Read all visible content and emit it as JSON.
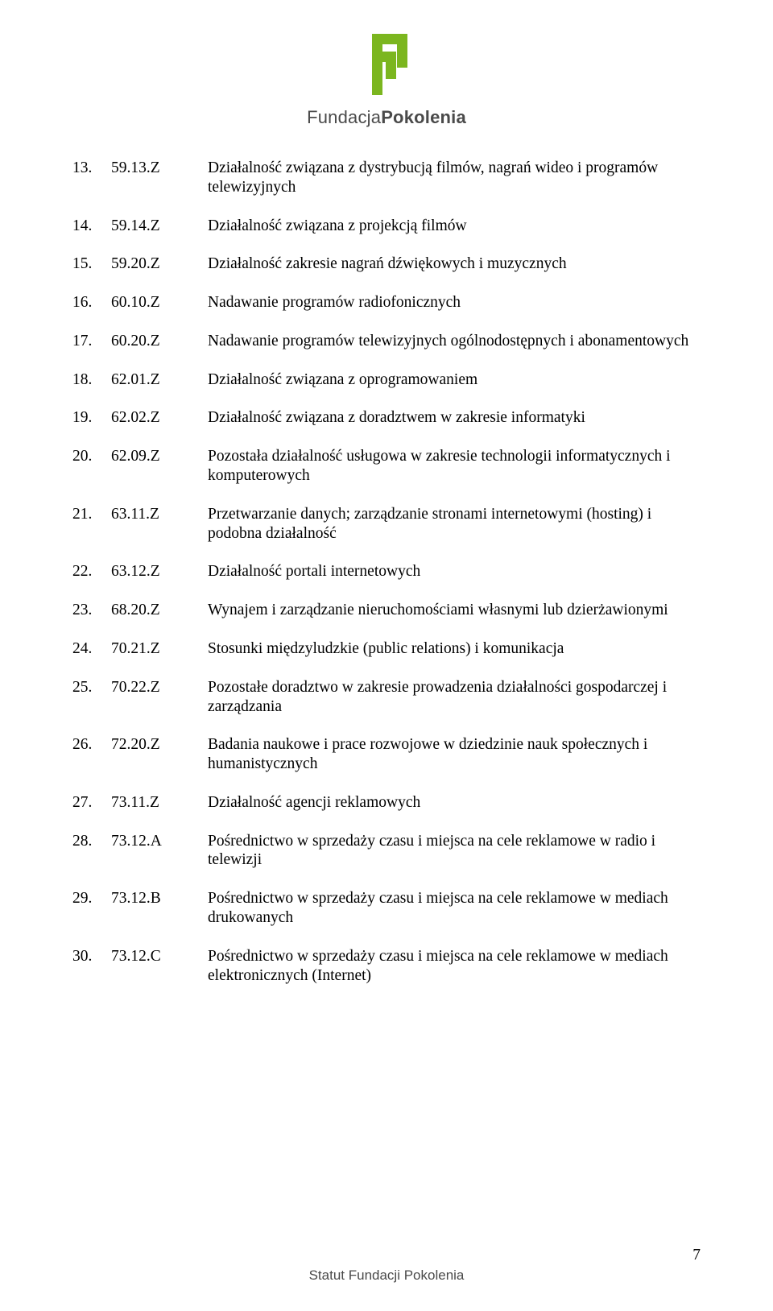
{
  "brand": {
    "part1": "Fundacja",
    "part2": "Pokolenia"
  },
  "logo": {
    "color": "#7bb61f",
    "width": 64,
    "height": 76
  },
  "rows": [
    {
      "n": "13.",
      "code": "59.13.Z",
      "desc": "Działalność związana z dystrybucją filmów, nagrań wideo i programów telewizyjnych"
    },
    {
      "n": "14.",
      "code": "59.14.Z",
      "desc": "Działalność związana z projekcją filmów"
    },
    {
      "n": "15.",
      "code": "59.20.Z",
      "desc": "Działalność zakresie nagrań dźwiękowych i muzycznych"
    },
    {
      "n": "16.",
      "code": "60.10.Z",
      "desc": "Nadawanie programów radiofonicznych"
    },
    {
      "n": "17.",
      "code": "60.20.Z",
      "desc": "Nadawanie programów telewizyjnych ogólnodostępnych i abonamentowych"
    },
    {
      "n": "18.",
      "code": "62.01.Z",
      "desc": "Działalność związana z oprogramowaniem"
    },
    {
      "n": "19.",
      "code": "62.02.Z",
      "desc": "Działalność związana z doradztwem w zakresie informatyki"
    },
    {
      "n": "20.",
      "code": "62.09.Z",
      "desc": "Pozostała działalność usługowa w zakresie technologii informatycznych i komputerowych"
    },
    {
      "n": "21.",
      "code": "63.11.Z",
      "desc": "Przetwarzanie danych; zarządzanie stronami internetowymi (hosting) i podobna działalność"
    },
    {
      "n": "22.",
      "code": "63.12.Z",
      "desc": "Działalność portali internetowych"
    },
    {
      "n": "23.",
      "code": "68.20.Z",
      "desc": "Wynajem i zarządzanie nieruchomościami własnymi lub dzierżawionymi"
    },
    {
      "n": "24.",
      "code": "70.21.Z",
      "desc": "Stosunki międzyludzkie (public relations) i komunikacja"
    },
    {
      "n": "25.",
      "code": "70.22.Z",
      "desc": "Pozostałe doradztwo w zakresie prowadzenia działalności gospodarczej i zarządzania"
    },
    {
      "n": "26.",
      "code": "72.20.Z",
      "desc": "Badania naukowe i prace rozwojowe w dziedzinie nauk społecznych i humanistycznych"
    },
    {
      "n": "27.",
      "code": "73.11.Z",
      "desc": "Działalność agencji reklamowych"
    },
    {
      "n": "28.",
      "code": "73.12.A",
      "desc": "Pośrednictwo w sprzedaży czasu i miejsca na cele reklamowe w radio i telewizji"
    },
    {
      "n": "29.",
      "code": "73.12.B",
      "desc": "Pośrednictwo w sprzedaży czasu i miejsca na cele reklamowe w mediach drukowanych"
    },
    {
      "n": "30.",
      "code": "73.12.C",
      "desc": "Pośrednictwo w sprzedaży czasu i miejsca na cele reklamowe w mediach elektronicznych (Internet)"
    }
  ],
  "footer": "Statut Fundacji Pokolenia",
  "page_number": "7"
}
